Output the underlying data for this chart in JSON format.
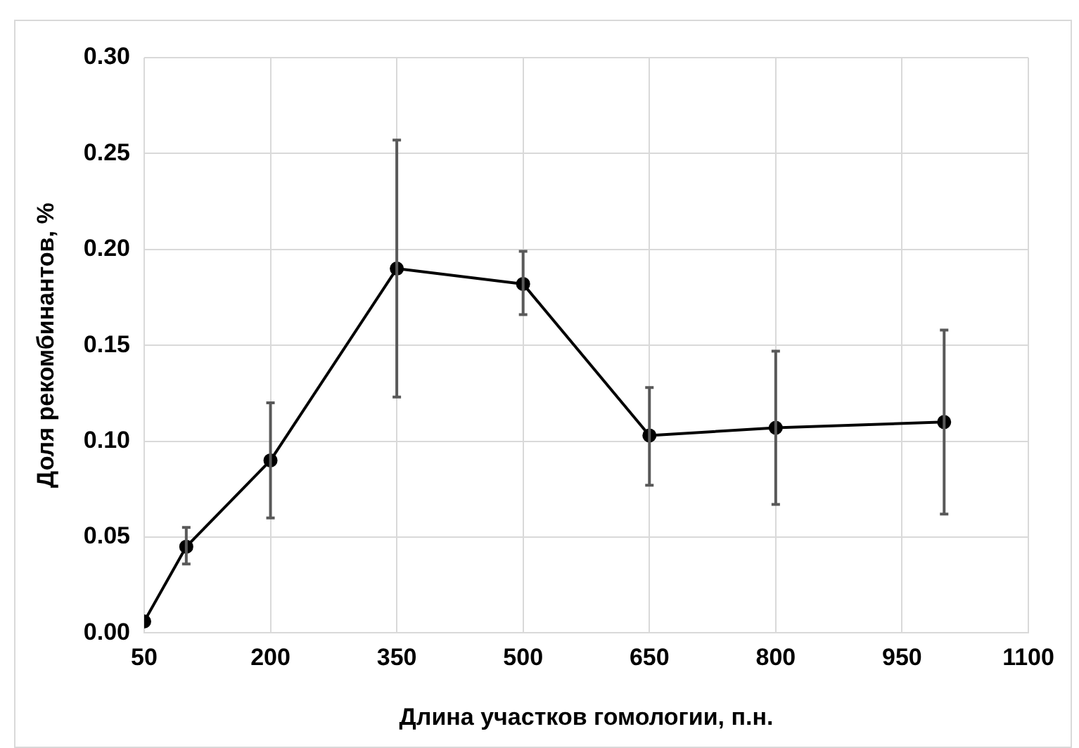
{
  "chart_data": {
    "type": "line",
    "xlabel": "Длина участков гомологии, п.н.",
    "ylabel": "Доля рекомбинантов, %",
    "x": [
      50,
      100,
      200,
      350,
      500,
      650,
      800,
      1000
    ],
    "values": [
      0.006,
      0.045,
      0.09,
      0.19,
      0.182,
      0.103,
      0.107,
      0.11
    ],
    "errors": [
      null,
      [
        0.036,
        0.055
      ],
      [
        0.06,
        0.12
      ],
      [
        0.123,
        0.257
      ],
      [
        0.166,
        0.199
      ],
      [
        0.077,
        0.128
      ],
      [
        0.067,
        0.147
      ],
      [
        0.062,
        0.158
      ]
    ],
    "color": "#000000",
    "xlim": [
      50,
      1100
    ],
    "xticks": [
      50,
      200,
      350,
      500,
      650,
      800,
      950,
      1100
    ],
    "ylim": [
      0,
      0.3
    ],
    "yticks": [
      {
        "value": 0,
        "label": "0.00"
      },
      {
        "value": 0.05,
        "label": "0.05"
      },
      {
        "value": 0.1,
        "label": "0.10"
      },
      {
        "value": 0.15,
        "label": "0.15"
      },
      {
        "value": 0.2,
        "label": "0.20"
      },
      {
        "value": 0.25,
        "label": "0.25"
      },
      {
        "value": 0.3,
        "label": "0.30"
      }
    ],
    "grid": true,
    "marker": "circle",
    "line_style": "solid"
  }
}
